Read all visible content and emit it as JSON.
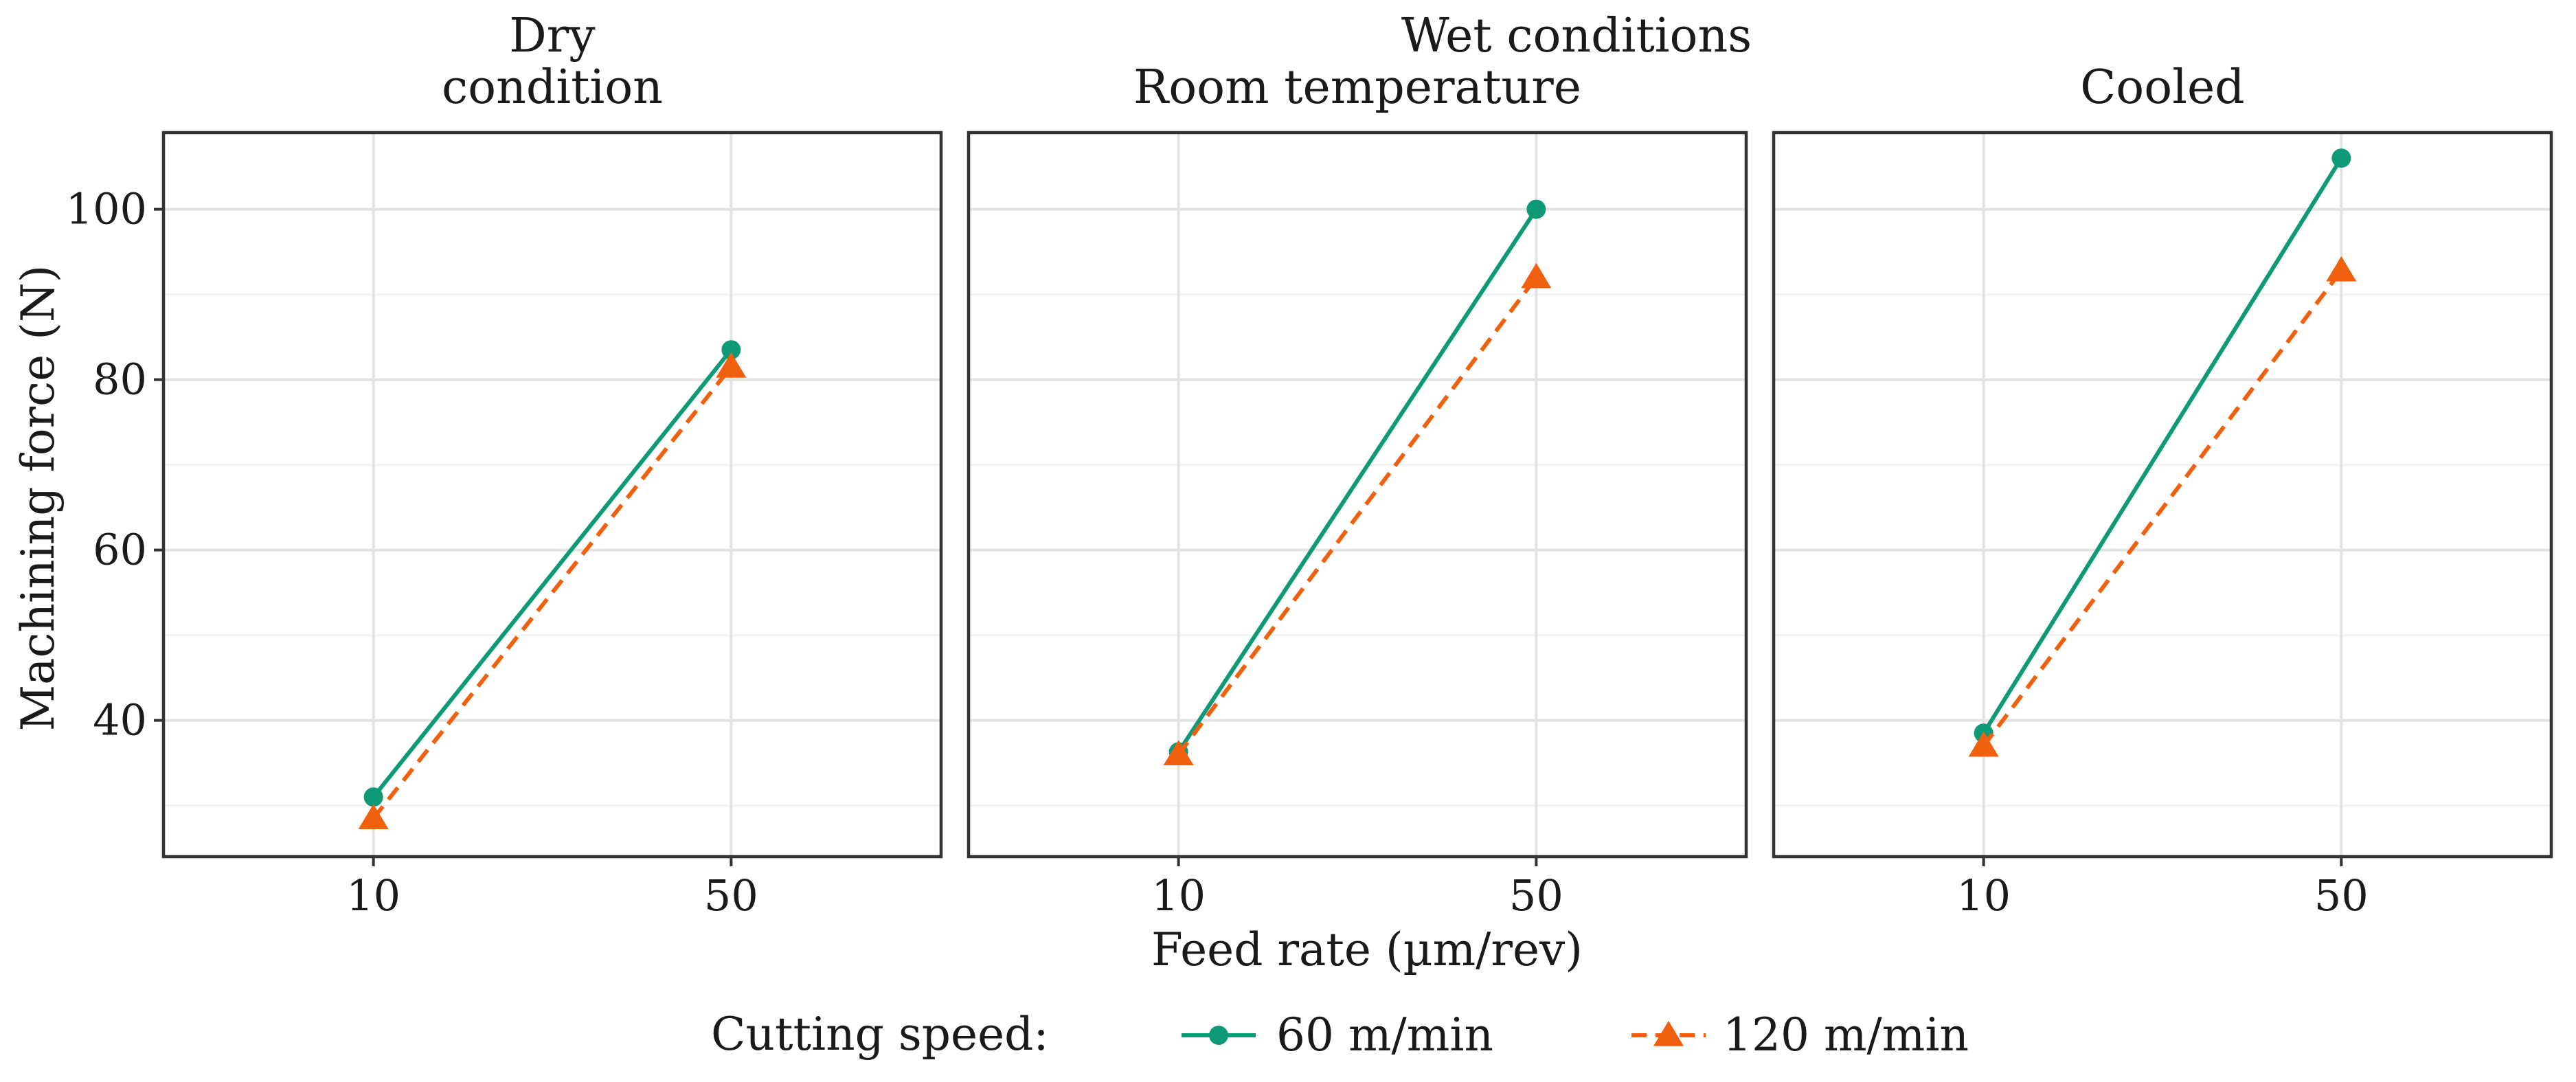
{
  "chart_data": {
    "type": "line",
    "title": "",
    "supertitle": "Wet conditions",
    "xlabel": "Feed rate (µm/rev)",
    "ylabel": "Machining force (N)",
    "categories": [
      "10",
      "50"
    ],
    "ylim": [
      24,
      109
    ],
    "yticks": [
      40,
      60,
      80,
      100
    ],
    "yticks_minor": [
      30,
      50,
      70,
      90
    ],
    "legend": {
      "title": "Cutting speed:",
      "placement": "bottom"
    },
    "series_style": [
      {
        "name": "60 m/min",
        "color": "#0e9a76",
        "marker": "circle",
        "dash": "solid"
      },
      {
        "name": "120 m/min",
        "color": "#f0600e",
        "marker": "triangle",
        "dash": "dashed"
      }
    ],
    "panels": [
      {
        "label_lines": [
          "Dry",
          "condition"
        ],
        "series": [
          {
            "name": "60 m/min",
            "values": [
              31,
              83.5
            ]
          },
          {
            "name": "120 m/min",
            "values": [
              28.5,
              81.5
            ]
          }
        ]
      },
      {
        "label_lines": [
          "Room temperature"
        ],
        "series": [
          {
            "name": "60 m/min",
            "values": [
              36.3,
              100
            ]
          },
          {
            "name": "120 m/min",
            "values": [
              36,
              92
            ]
          }
        ]
      },
      {
        "label_lines": [
          "Cooled"
        ],
        "series": [
          {
            "name": "60 m/min",
            "values": [
              38.5,
              106
            ]
          },
          {
            "name": "120 m/min",
            "values": [
              37,
              92.8
            ]
          }
        ]
      }
    ]
  }
}
